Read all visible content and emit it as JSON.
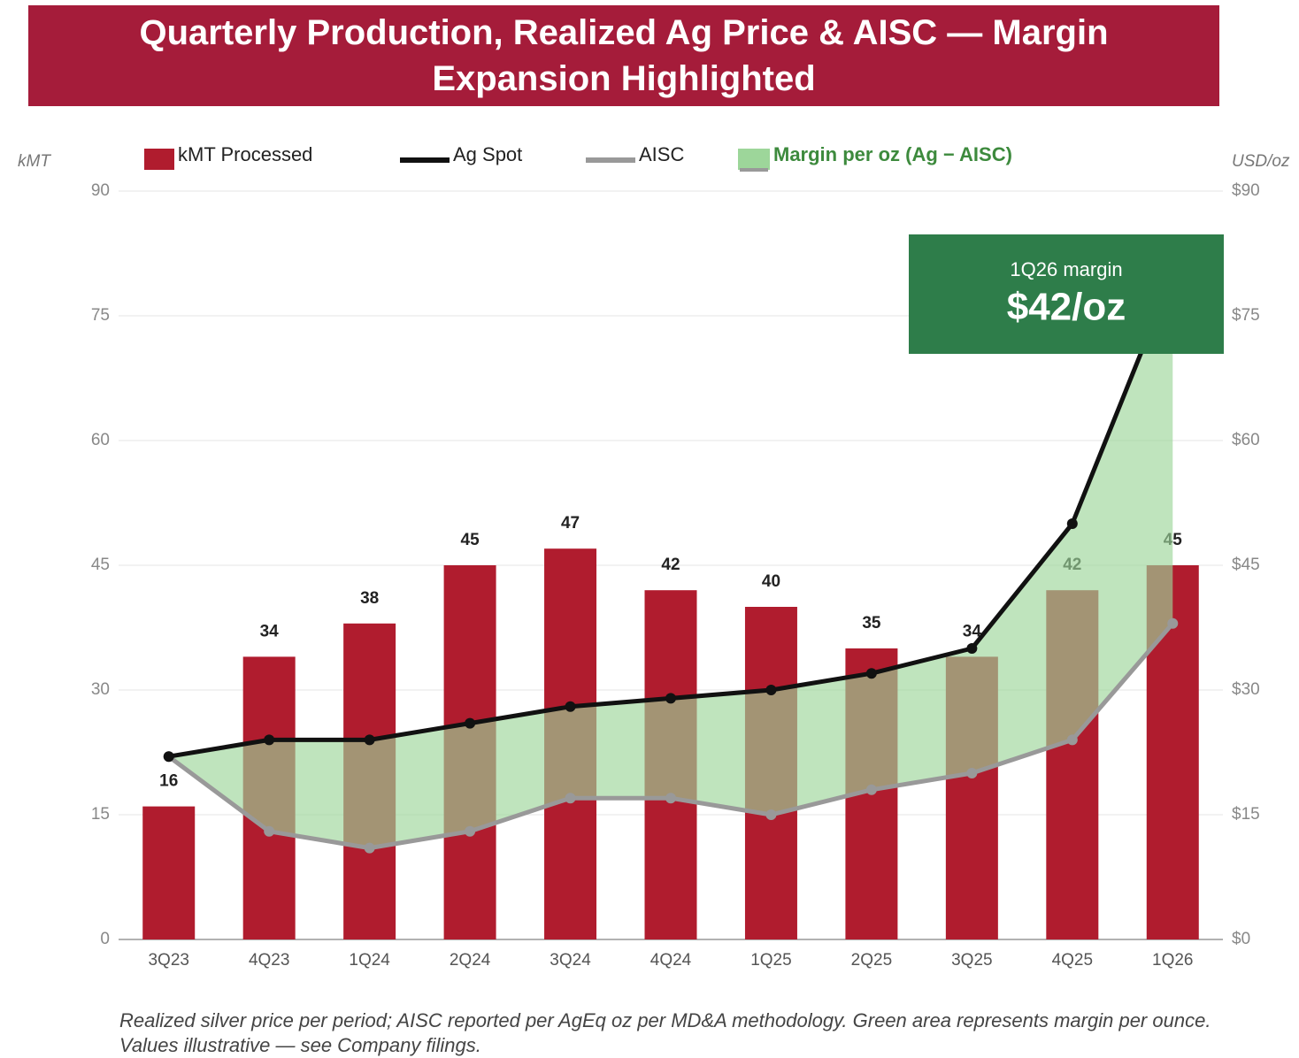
{
  "chart_data": {
    "type": "bar",
    "title": "Quarterly Production, Realized Ag Price & AISC — Margin Expansion Highlighted",
    "ylabel": "kMT",
    "y2label": "USD/oz",
    "categories": [
      "3Q23",
      "4Q23",
      "1Q24",
      "2Q24",
      "3Q24",
      "4Q24",
      "1Q25",
      "2Q25",
      "3Q25",
      "4Q25",
      "1Q26"
    ],
    "series": [
      {
        "name": "kMT Processed",
        "type": "bar",
        "color": "#b01c2e",
        "values": [
          16,
          34,
          38,
          45,
          47,
          42,
          40,
          35,
          34,
          42,
          45
        ]
      },
      {
        "name": "Ag Spot",
        "type": "line",
        "axis": "y2",
        "color": "#111111",
        "values": [
          22,
          24,
          24,
          26,
          28,
          29,
          30,
          32,
          35,
          50,
          80
        ]
      },
      {
        "name": "AISC",
        "type": "line",
        "axis": "y2",
        "color": "#999999",
        "values": [
          22,
          13,
          11,
          13,
          17,
          17,
          15,
          18,
          20,
          24,
          38
        ]
      }
    ],
    "margin_area": {
      "name": "Margin per oz (Ag − AISC)",
      "color": "#9dd69a",
      "text_color": "#3d8a3d"
    },
    "ylim": [
      0,
      90
    ],
    "yticks": [
      0,
      15,
      30,
      45,
      60,
      75,
      90
    ],
    "y2lim": [
      0,
      90
    ],
    "y2ticks": [
      {
        "value": 0,
        "label": "$0"
      },
      {
        "value": 15,
        "label": "$15"
      },
      {
        "value": 30,
        "label": "$30"
      },
      {
        "value": 45,
        "label": "$45"
      },
      {
        "value": 60,
        "label": "$60"
      },
      {
        "value": 75,
        "label": "$75"
      },
      {
        "value": 90,
        "label": "$90"
      }
    ],
    "grid": true,
    "annotation": {
      "title": "1Q26 margin",
      "value_label": "$42/oz",
      "color": "#2e7d4a"
    },
    "footnote": "Realized silver price per period; AISC reported per AgEq oz per MD&A methodology. Green area represents margin per ounce. Values illustrative — see Company filings."
  }
}
